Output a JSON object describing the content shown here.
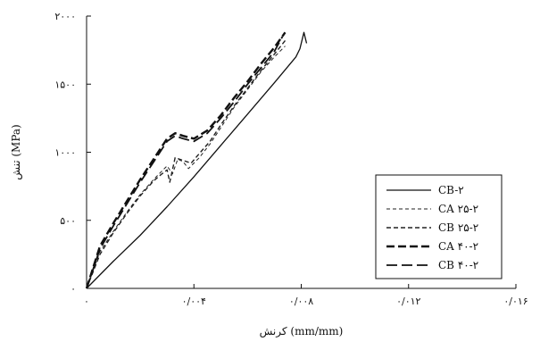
{
  "chart_data": {
    "type": "line",
    "xlabel": "کرنش (mm/mm)",
    "ylabel": "تنش (MPa)",
    "xlim": [
      0,
      0.016
    ],
    "ylim": [
      0,
      2000
    ],
    "x_ticks": [
      0,
      0.004,
      0.008,
      0.012,
      0.016
    ],
    "y_ticks": [
      0,
      500,
      1000,
      1500,
      2000
    ],
    "x_tick_labels": [
      "۰",
      "۰/۰۰۴",
      "۰/۰۰۸",
      "۰/۰۱۲",
      "۰/۰۱۶"
    ],
    "y_tick_labels": [
      "۰",
      "۵۰۰",
      "۱۰۰۰",
      "۱۵۰۰",
      "۲۰۰۰"
    ],
    "grid": false,
    "legend_position": "bottom-right",
    "series": [
      {
        "name": "CB-۲",
        "style": "solid",
        "color": "#111111",
        "x": [
          0,
          0.001,
          0.002,
          0.003,
          0.004,
          0.005,
          0.006,
          0.007,
          0.0078,
          0.00795,
          0.0081,
          0.0082
        ],
        "y": [
          0,
          200,
          390,
          600,
          820,
          1050,
          1280,
          1510,
          1700,
          1760,
          1880,
          1800
        ]
      },
      {
        "name": "CA ۲۵-۲",
        "style": "dashed-fine",
        "color": "#222222",
        "x": [
          0,
          0.0005,
          0.001,
          0.0015,
          0.002,
          0.0025,
          0.0028,
          0.003,
          0.0032,
          0.0034,
          0.0036,
          0.0038,
          0.0042,
          0.0046,
          0.005,
          0.0055,
          0.006,
          0.0065,
          0.007,
          0.0074
        ],
        "y": [
          0,
          270,
          420,
          560,
          690,
          800,
          860,
          900,
          840,
          950,
          930,
          880,
          960,
          1060,
          1180,
          1330,
          1460,
          1590,
          1700,
          1780
        ]
      },
      {
        "name": "CB ۲۵-۲",
        "style": "dashed",
        "color": "#222222",
        "x": [
          0,
          0.0005,
          0.001,
          0.0015,
          0.002,
          0.0025,
          0.0028,
          0.003,
          0.0031,
          0.0033,
          0.0036,
          0.0039,
          0.0042,
          0.0046,
          0.005,
          0.0055,
          0.006,
          0.0065,
          0.007,
          0.0074
        ],
        "y": [
          0,
          250,
          410,
          550,
          680,
          790,
          840,
          870,
          780,
          960,
          940,
          920,
          990,
          1080,
          1200,
          1340,
          1470,
          1600,
          1720,
          1820
        ]
      },
      {
        "name": "CA ۴۰-۲",
        "style": "dashed-heavy",
        "color": "#111111",
        "x": [
          0,
          0.0005,
          0.001,
          0.0015,
          0.002,
          0.0025,
          0.0028,
          0.003,
          0.0033,
          0.0036,
          0.004,
          0.0045,
          0.005,
          0.0055,
          0.006,
          0.0065,
          0.007,
          0.0074
        ],
        "y": [
          0,
          310,
          480,
          640,
          800,
          950,
          1040,
          1100,
          1140,
          1120,
          1100,
          1160,
          1270,
          1400,
          1520,
          1650,
          1770,
          1880
        ]
      },
      {
        "name": "CB ۴۰-۲",
        "style": "long-dash",
        "color": "#111111",
        "x": [
          0,
          0.0005,
          0.001,
          0.0015,
          0.002,
          0.0025,
          0.0028,
          0.003,
          0.0033,
          0.0036,
          0.004,
          0.0045,
          0.005,
          0.0055,
          0.006,
          0.0065,
          0.007,
          0.0073
        ],
        "y": [
          0,
          290,
          460,
          620,
          780,
          930,
          1020,
          1080,
          1120,
          1100,
          1080,
          1140,
          1250,
          1370,
          1500,
          1620,
          1740,
          1850
        ]
      }
    ]
  }
}
